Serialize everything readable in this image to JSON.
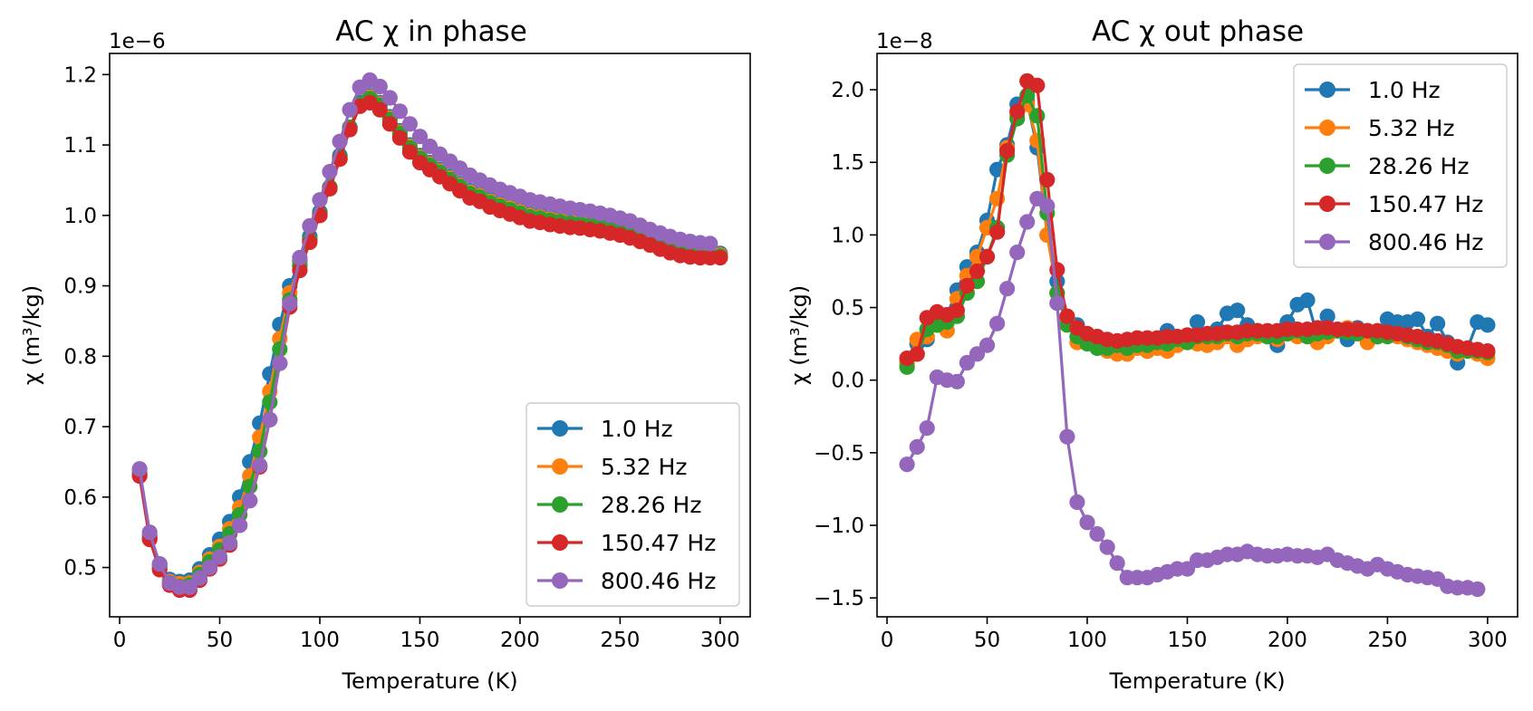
{
  "chart_data": [
    {
      "type": "line",
      "title": "AC χ in phase",
      "xlabel": "Temperature (K)",
      "ylabel": "χ (m³/kg)",
      "y_multiplier_label": "1e−6",
      "xlim": [
        -5,
        315
      ],
      "ylim": [
        0.43,
        1.23
      ],
      "xticks": [
        0,
        50,
        100,
        150,
        200,
        250,
        300
      ],
      "yticks": [
        0.5,
        0.6,
        0.7,
        0.8,
        0.9,
        1.0,
        1.1,
        1.2
      ],
      "ytick_labels": [
        "0.5",
        "0.6",
        "0.7",
        "0.8",
        "0.9",
        "1.0",
        "1.1",
        "1.2"
      ],
      "legend_position": "lower right",
      "x": [
        10,
        15,
        20,
        25,
        30,
        35,
        40,
        45,
        50,
        55,
        60,
        65,
        70,
        75,
        80,
        85,
        90,
        95,
        100,
        105,
        110,
        115,
        120,
        125,
        130,
        135,
        140,
        145,
        150,
        155,
        160,
        165,
        170,
        175,
        180,
        185,
        190,
        195,
        200,
        205,
        210,
        215,
        220,
        225,
        230,
        235,
        240,
        245,
        250,
        255,
        260,
        265,
        270,
        275,
        280,
        285,
        290,
        295,
        300
      ],
      "series": [
        {
          "name": "1.0 Hz",
          "color": "#1f77b4",
          "values": [
            0.635,
            0.545,
            0.505,
            0.483,
            0.48,
            0.482,
            0.498,
            0.518,
            0.54,
            0.565,
            0.6,
            0.65,
            0.705,
            0.775,
            0.845,
            0.9,
            0.935,
            0.97,
            1.005,
            1.04,
            1.085,
            1.125,
            1.16,
            1.17,
            1.16,
            1.14,
            1.12,
            1.1,
            1.085,
            1.075,
            1.065,
            1.055,
            1.045,
            1.035,
            1.03,
            1.022,
            1.017,
            1.012,
            1.007,
            1.002,
            1.0,
            0.997,
            0.995,
            0.993,
            0.992,
            0.99,
            0.988,
            0.985,
            0.982,
            0.978,
            0.973,
            0.968,
            0.962,
            0.957,
            0.952,
            0.948,
            0.946,
            0.946,
            0.946
          ]
        },
        {
          "name": "5.32 Hz",
          "color": "#ff7f0e",
          "values": [
            0.633,
            0.543,
            0.502,
            0.48,
            0.477,
            0.478,
            0.493,
            0.512,
            0.53,
            0.555,
            0.585,
            0.63,
            0.685,
            0.75,
            0.825,
            0.89,
            0.93,
            0.965,
            1.0,
            1.038,
            1.08,
            1.125,
            1.158,
            1.168,
            1.158,
            1.138,
            1.118,
            1.098,
            1.083,
            1.073,
            1.063,
            1.053,
            1.043,
            1.033,
            1.028,
            1.02,
            1.015,
            1.01,
            1.005,
            1.0,
            0.998,
            0.995,
            0.993,
            0.991,
            0.99,
            0.988,
            0.986,
            0.983,
            0.98,
            0.976,
            0.971,
            0.966,
            0.96,
            0.955,
            0.95,
            0.946,
            0.944,
            0.944,
            0.944
          ]
        },
        {
          "name": "28.26 Hz",
          "color": "#2ca02c",
          "values": [
            0.632,
            0.542,
            0.5,
            0.478,
            0.473,
            0.475,
            0.49,
            0.508,
            0.525,
            0.548,
            0.575,
            0.615,
            0.665,
            0.735,
            0.81,
            0.88,
            0.928,
            0.965,
            1.002,
            1.04,
            1.082,
            1.125,
            1.158,
            1.166,
            1.156,
            1.136,
            1.116,
            1.096,
            1.081,
            1.071,
            1.061,
            1.051,
            1.041,
            1.031,
            1.026,
            1.018,
            1.013,
            1.008,
            1.003,
            0.998,
            0.996,
            0.993,
            0.991,
            0.989,
            0.988,
            0.986,
            0.984,
            0.981,
            0.978,
            0.974,
            0.969,
            0.964,
            0.958,
            0.953,
            0.948,
            0.944,
            0.942,
            0.942,
            0.942
          ]
        },
        {
          "name": "150.47 Hz",
          "color": "#d62728",
          "values": [
            0.63,
            0.54,
            0.497,
            0.475,
            0.468,
            0.468,
            0.482,
            0.498,
            0.512,
            0.532,
            0.56,
            0.595,
            0.643,
            0.71,
            0.79,
            0.87,
            0.922,
            0.962,
            1.0,
            1.038,
            1.08,
            1.122,
            1.155,
            1.16,
            1.15,
            1.13,
            1.11,
            1.09,
            1.075,
            1.065,
            1.055,
            1.045,
            1.035,
            1.025,
            1.02,
            1.012,
            1.007,
            1.002,
            0.997,
            0.992,
            0.99,
            0.987,
            0.985,
            0.983,
            0.982,
            0.98,
            0.978,
            0.975,
            0.972,
            0.968,
            0.963,
            0.958,
            0.952,
            0.947,
            0.943,
            0.941,
            0.94,
            0.94,
            0.94
          ]
        },
        {
          "name": "800.46 Hz",
          "color": "#9467bd",
          "values": [
            0.64,
            0.55,
            0.505,
            0.478,
            0.472,
            0.472,
            0.485,
            0.5,
            0.515,
            0.535,
            0.56,
            0.595,
            0.645,
            0.71,
            0.79,
            0.875,
            0.94,
            0.985,
            1.022,
            1.062,
            1.105,
            1.15,
            1.182,
            1.192,
            1.183,
            1.167,
            1.148,
            1.13,
            1.112,
            1.098,
            1.087,
            1.077,
            1.067,
            1.057,
            1.05,
            1.043,
            1.037,
            1.032,
            1.027,
            1.022,
            1.019,
            1.016,
            1.013,
            1.01,
            1.008,
            1.006,
            1.003,
            1.0,
            0.996,
            0.992,
            0.986,
            0.98,
            0.975,
            0.97,
            0.966,
            0.963,
            0.961,
            0.96,
            null
          ]
        }
      ]
    },
    {
      "type": "line",
      "title": "AC χ out phase",
      "xlabel": "Temperature (K)",
      "ylabel": "χ (m³/kg)",
      "y_multiplier_label": "1e−8",
      "xlim": [
        -5,
        315
      ],
      "ylim": [
        -1.63,
        2.25
      ],
      "xticks": [
        0,
        50,
        100,
        150,
        200,
        250,
        300
      ],
      "yticks": [
        -1.5,
        -1.0,
        -0.5,
        0.0,
        0.5,
        1.0,
        1.5,
        2.0
      ],
      "ytick_labels": [
        "−1.5",
        "−1.0",
        "−0.5",
        "0.0",
        "0.5",
        "1.0",
        "1.5",
        "2.0"
      ],
      "legend_position": "upper right",
      "x": [
        10,
        15,
        20,
        25,
        30,
        35,
        40,
        45,
        50,
        55,
        60,
        65,
        70,
        75,
        80,
        85,
        90,
        95,
        100,
        105,
        110,
        115,
        120,
        125,
        130,
        135,
        140,
        145,
        150,
        155,
        160,
        165,
        170,
        175,
        180,
        185,
        190,
        195,
        200,
        205,
        210,
        215,
        220,
        225,
        230,
        235,
        240,
        245,
        250,
        255,
        260,
        265,
        270,
        275,
        280,
        285,
        290,
        295,
        300
      ],
      "series": [
        {
          "name": "1.0 Hz",
          "color": "#1f77b4",
          "values": [
            0.12,
            0.25,
            0.28,
            0.4,
            0.45,
            0.62,
            0.78,
            0.88,
            1.1,
            1.45,
            1.62,
            1.9,
            1.92,
            1.6,
            1.0,
            0.68,
            0.42,
            0.38,
            0.3,
            0.28,
            0.25,
            0.22,
            0.22,
            0.24,
            0.2,
            0.26,
            0.34,
            0.26,
            0.28,
            0.4,
            0.3,
            0.35,
            0.46,
            0.48,
            0.38,
            0.34,
            0.3,
            0.24,
            0.4,
            0.52,
            0.55,
            0.3,
            0.44,
            0.34,
            0.28,
            0.36,
            0.3,
            0.3,
            0.42,
            0.4,
            0.4,
            0.42,
            0.3,
            0.39,
            0.26,
            0.12,
            0.22,
            0.4,
            0.38
          ]
        },
        {
          "name": "5.32 Hz",
          "color": "#ff7f0e",
          "values": [
            0.12,
            0.28,
            0.3,
            0.38,
            0.34,
            0.56,
            0.72,
            0.85,
            1.05,
            1.25,
            1.6,
            1.82,
            1.9,
            1.65,
            1.0,
            0.6,
            0.4,
            0.26,
            0.26,
            0.24,
            0.2,
            0.18,
            0.18,
            0.22,
            0.2,
            0.22,
            0.2,
            0.24,
            0.26,
            0.25,
            0.24,
            0.26,
            0.3,
            0.24,
            0.28,
            0.3,
            0.3,
            0.28,
            0.32,
            0.3,
            0.3,
            0.26,
            0.3,
            0.34,
            0.36,
            0.34,
            0.26,
            0.3,
            0.32,
            0.3,
            0.28,
            0.26,
            0.24,
            0.22,
            0.2,
            0.18,
            0.2,
            0.18,
            0.15
          ]
        },
        {
          "name": "28.26 Hz",
          "color": "#2ca02c",
          "values": [
            0.09,
            0.18,
            0.35,
            0.38,
            0.4,
            0.44,
            0.6,
            0.68,
            0.85,
            1.05,
            1.55,
            1.8,
            1.96,
            1.82,
            1.15,
            0.6,
            0.38,
            0.3,
            0.25,
            0.22,
            0.22,
            0.24,
            0.22,
            0.24,
            0.24,
            0.26,
            0.25,
            0.28,
            0.26,
            0.3,
            0.3,
            0.3,
            0.32,
            0.3,
            0.32,
            0.32,
            0.3,
            0.3,
            0.32,
            0.34,
            0.3,
            0.32,
            0.33,
            0.34,
            0.33,
            0.32,
            0.34,
            0.3,
            0.3,
            0.32,
            0.3,
            0.28,
            0.26,
            0.26,
            0.24,
            0.2,
            0.2,
            0.2,
            0.19
          ]
        },
        {
          "name": "150.47 Hz",
          "color": "#d62728",
          "values": [
            0.15,
            0.18,
            0.43,
            0.47,
            0.45,
            0.48,
            0.65,
            0.75,
            0.85,
            1.02,
            1.58,
            1.85,
            2.06,
            2.03,
            1.38,
            0.76,
            0.44,
            0.36,
            0.32,
            0.3,
            0.28,
            0.27,
            0.28,
            0.29,
            0.29,
            0.29,
            0.3,
            0.3,
            0.31,
            0.31,
            0.32,
            0.32,
            0.33,
            0.33,
            0.34,
            0.34,
            0.34,
            0.34,
            0.35,
            0.35,
            0.35,
            0.36,
            0.36,
            0.35,
            0.35,
            0.35,
            0.34,
            0.34,
            0.33,
            0.32,
            0.31,
            0.3,
            0.28,
            0.27,
            0.25,
            0.23,
            0.22,
            0.21,
            0.2
          ]
        },
        {
          "name": "800.46 Hz",
          "color": "#9467bd",
          "values": [
            -0.58,
            -0.46,
            -0.33,
            0.02,
            0.0,
            -0.01,
            0.12,
            0.18,
            0.24,
            0.39,
            0.63,
            0.88,
            1.09,
            1.25,
            1.2,
            0.53,
            -0.39,
            -0.84,
            -0.98,
            -1.06,
            -1.15,
            -1.26,
            -1.36,
            -1.36,
            -1.36,
            -1.34,
            -1.32,
            -1.3,
            -1.3,
            -1.24,
            -1.24,
            -1.22,
            -1.2,
            -1.2,
            -1.18,
            -1.2,
            -1.21,
            -1.21,
            -1.2,
            -1.21,
            -1.21,
            -1.22,
            -1.2,
            -1.24,
            -1.26,
            -1.28,
            -1.3,
            -1.27,
            -1.3,
            -1.32,
            -1.34,
            -1.35,
            -1.36,
            -1.37,
            -1.42,
            -1.43,
            -1.43,
            -1.44,
            null
          ]
        }
      ]
    }
  ]
}
